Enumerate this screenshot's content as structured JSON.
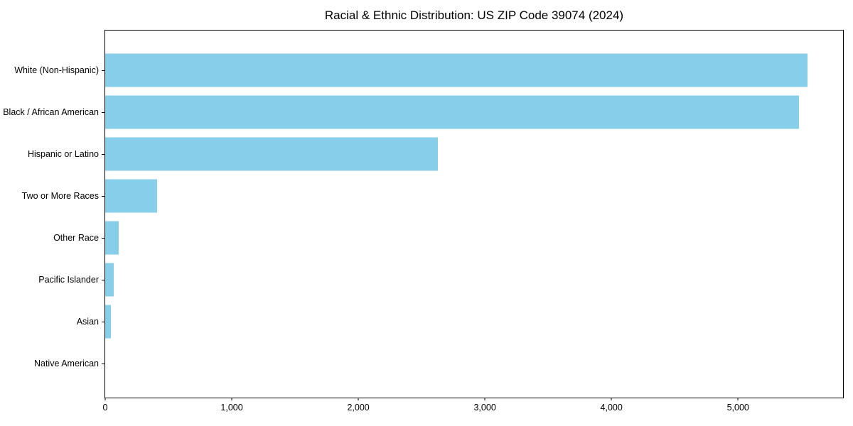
{
  "chart_data": {
    "type": "bar",
    "orientation": "horizontal",
    "title": "Racial & Ethnic Distribution: US ZIP Code 39074 (2024)",
    "categories": [
      "White (Non-Hispanic)",
      "Black / African American",
      "Hispanic or Latino",
      "Two or More Races",
      "Other Race",
      "Pacific Islander",
      "Asian",
      "Native American"
    ],
    "values": [
      5550,
      5480,
      2630,
      410,
      105,
      70,
      45,
      0
    ],
    "xlabel": "",
    "ylabel": "",
    "xlim": [
      0,
      5830
    ],
    "xticks": [
      0,
      1000,
      2000,
      3000,
      4000,
      5000
    ],
    "xtick_labels": [
      "0",
      "1,000",
      "2,000",
      "3,000",
      "4,000",
      "5,000"
    ],
    "bar_color": "#87CEEB",
    "spine_color": "#000000",
    "grid": false,
    "legend": null
  }
}
